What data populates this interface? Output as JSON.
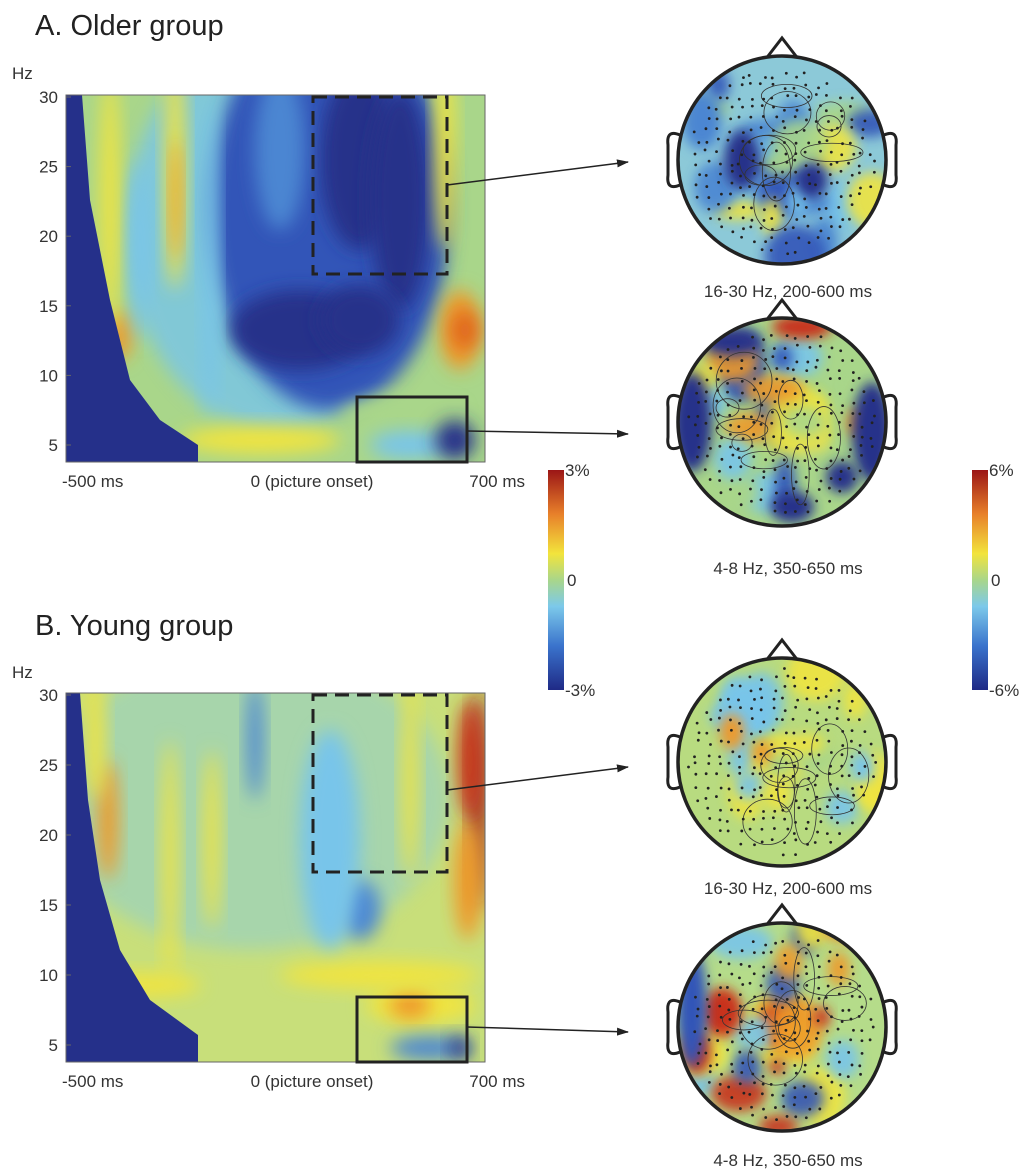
{
  "panels": [
    {
      "title": "A.  Older group",
      "y_label": "Hz",
      "y_ticks": [
        30,
        25,
        20,
        15,
        10,
        5
      ],
      "x_ticks": [
        "-500 ms",
        "0 (picture onset)",
        "700 ms"
      ],
      "topomaps": [
        {
          "caption": "16-30 Hz, 200-600 ms"
        },
        {
          "caption": "4-8 Hz, 350-650 ms"
        }
      ]
    },
    {
      "title": "B.  Young group",
      "y_label": "Hz",
      "y_ticks": [
        30,
        25,
        20,
        15,
        10,
        5
      ],
      "x_ticks": [
        "-500 ms",
        "0 (picture onset)",
        "700 ms"
      ],
      "topomaps": [
        {
          "caption": "16-30 Hz, 200-600 ms"
        },
        {
          "caption": "4-8 Hz, 350-650 ms"
        }
      ]
    }
  ],
  "colorbars": [
    {
      "labels": [
        "3%",
        "0",
        "-3%"
      ]
    },
    {
      "labels": [
        "6%",
        "0",
        "-6%"
      ]
    }
  ]
}
